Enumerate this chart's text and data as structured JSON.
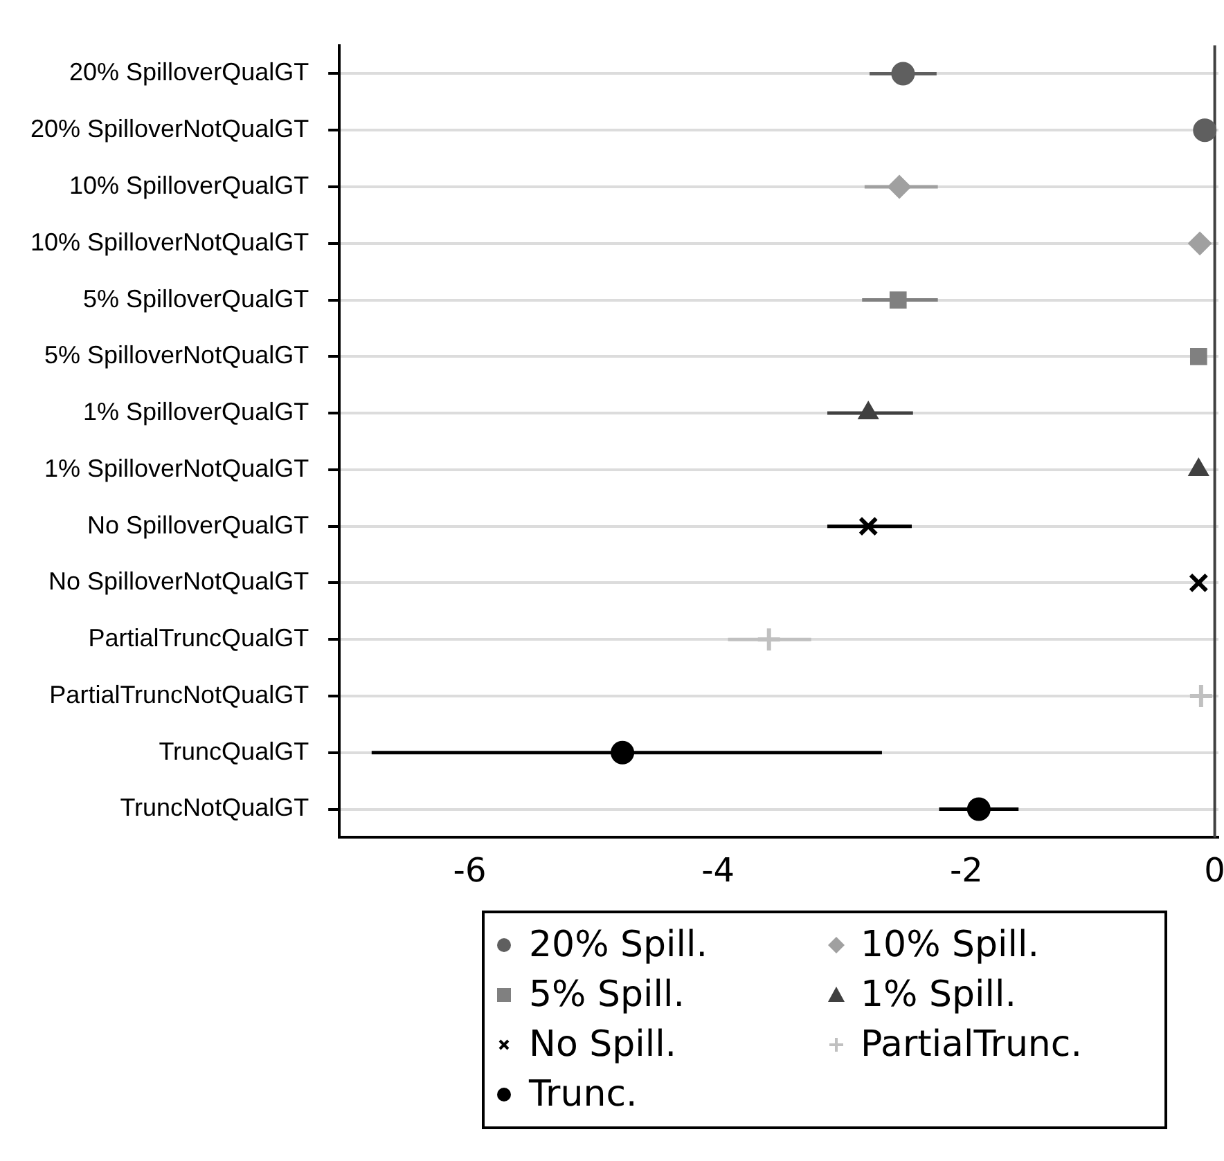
{
  "chart_data": {
    "type": "scatter",
    "orientation": "horizontal",
    "categories": [
      "20% SpilloverQualGT",
      "20% SpilloverNotQualGT",
      "10% SpilloverQualGT",
      "10% SpilloverNotQualGT",
      "5% SpilloverQualGT",
      "5% SpilloverNotQualGT",
      "1% SpilloverQualGT",
      "1% SpilloverNotQualGT",
      "No SpilloverQualGT",
      "No SpilloverNotQualGT",
      "PartialTruncQualGT",
      "PartialTruncNotQualGT",
      "TruncQualGT",
      "TruncNotQualGT"
    ],
    "series": [
      {
        "name": "20% Spill.",
        "color": "#5f5f5f",
        "marker": "circle",
        "values": [
          -2.51,
          -0.08,
          null,
          null,
          null,
          null,
          null,
          null,
          null,
          null,
          null,
          null,
          null,
          null
        ],
        "errors": [
          [
            -2.78,
            -2.24
          ],
          null,
          null,
          null,
          null,
          null,
          null,
          null,
          null,
          null,
          null,
          null,
          null,
          null
        ]
      },
      {
        "name": "10% Spill.",
        "color": "#a0a0a0",
        "marker": "diamond",
        "values": [
          null,
          null,
          -2.54,
          -0.12,
          null,
          null,
          null,
          null,
          null,
          null,
          null,
          null,
          null,
          null
        ],
        "errors": [
          null,
          null,
          [
            -2.82,
            -2.23
          ],
          null,
          null,
          null,
          null,
          null,
          null,
          null,
          null,
          null,
          null,
          null
        ]
      },
      {
        "name": "5% Spill.",
        "color": "#808080",
        "marker": "square",
        "values": [
          null,
          null,
          null,
          null,
          -2.55,
          -0.13,
          null,
          null,
          null,
          null,
          null,
          null,
          null,
          null
        ],
        "errors": [
          null,
          null,
          null,
          null,
          [
            -2.84,
            -2.23
          ],
          null,
          null,
          null,
          null,
          null,
          null,
          null,
          null,
          null
        ]
      },
      {
        "name": "1% Spill.",
        "color": "#404040",
        "marker": "triangle",
        "values": [
          null,
          null,
          null,
          null,
          null,
          null,
          -2.79,
          -0.13,
          null,
          null,
          null,
          null,
          null,
          null
        ],
        "errors": [
          null,
          null,
          null,
          null,
          null,
          null,
          [
            -3.12,
            -2.43
          ],
          null,
          null,
          null,
          null,
          null,
          null,
          null
        ]
      },
      {
        "name": "No Spill.",
        "color": "#000000",
        "marker": "cross",
        "values": [
          null,
          null,
          null,
          null,
          null,
          null,
          null,
          null,
          -2.79,
          -0.13,
          null,
          null,
          null,
          null
        ],
        "errors": [
          null,
          null,
          null,
          null,
          null,
          null,
          null,
          null,
          [
            -3.12,
            -2.44
          ],
          null,
          null,
          null,
          null,
          null
        ]
      },
      {
        "name": "PartialTrunc.",
        "color": "#c0c0c0",
        "marker": "plus",
        "values": [
          null,
          null,
          null,
          null,
          null,
          null,
          null,
          null,
          null,
          null,
          -3.59,
          -0.11,
          null,
          null
        ],
        "errors": [
          null,
          null,
          null,
          null,
          null,
          null,
          null,
          null,
          null,
          null,
          [
            -3.92,
            -3.25
          ],
          null,
          null,
          null
        ]
      },
      {
        "name": "Trunc.",
        "color": "#000000",
        "marker": "circle",
        "values": [
          null,
          null,
          null,
          null,
          null,
          null,
          null,
          null,
          null,
          null,
          null,
          null,
          -4.77,
          -1.9
        ],
        "errors": [
          null,
          null,
          null,
          null,
          null,
          null,
          null,
          null,
          null,
          null,
          null,
          null,
          [
            -6.79,
            -2.68
          ],
          [
            -2.22,
            -1.58
          ]
        ]
      }
    ],
    "xlim": [
      -7.05,
      0.03
    ],
    "xticks": [
      -6,
      -4,
      -2,
      0
    ],
    "ref_lines": [
      {
        "axis": "x",
        "value": 0,
        "color": "#404040"
      }
    ],
    "grid": "y",
    "legend": "bottom"
  }
}
